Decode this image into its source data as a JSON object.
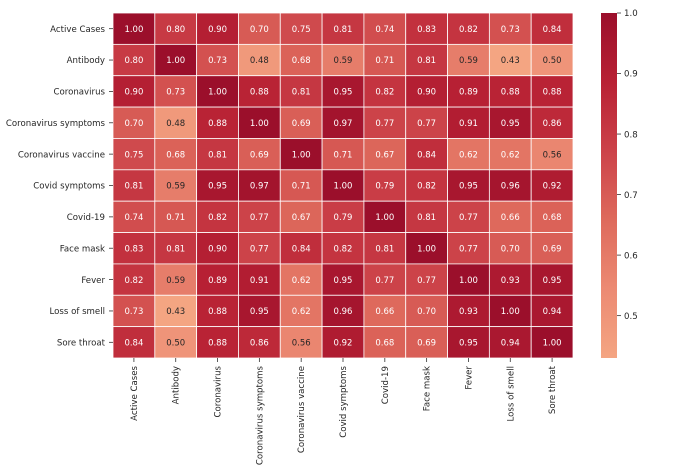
{
  "chart_data": {
    "type": "heatmap",
    "title": "",
    "rows": [
      "Active Cases",
      "Antibody",
      "Coronavirus",
      "Coronavirus symptoms",
      "Coronavirus vaccine",
      "Covid symptoms",
      "Covid-19",
      "Face mask",
      "Fever",
      "Loss of smell",
      "Sore throat"
    ],
    "columns": [
      "Active Cases",
      "Antibody",
      "Coronavirus",
      "Coronavirus symptoms",
      "Coronavirus vaccine",
      "Covid symptoms",
      "Covid-19",
      "Face mask",
      "Fever",
      "Loss of smell",
      "Sore throat"
    ],
    "values": [
      [
        1.0,
        0.8,
        0.9,
        0.7,
        0.75,
        0.81,
        0.74,
        0.83,
        0.82,
        0.73,
        0.84
      ],
      [
        0.8,
        1.0,
        0.73,
        0.48,
        0.68,
        0.59,
        0.71,
        0.81,
        0.59,
        0.43,
        0.5
      ],
      [
        0.9,
        0.73,
        1.0,
        0.88,
        0.81,
        0.95,
        0.82,
        0.9,
        0.89,
        0.88,
        0.88
      ],
      [
        0.7,
        0.48,
        0.88,
        1.0,
        0.69,
        0.97,
        0.77,
        0.77,
        0.91,
        0.95,
        0.86
      ],
      [
        0.75,
        0.68,
        0.81,
        0.69,
        1.0,
        0.71,
        0.67,
        0.84,
        0.62,
        0.62,
        0.56
      ],
      [
        0.81,
        0.59,
        0.95,
        0.97,
        0.71,
        1.0,
        0.79,
        0.82,
        0.95,
        0.96,
        0.92
      ],
      [
        0.74,
        0.71,
        0.82,
        0.77,
        0.67,
        0.79,
        1.0,
        0.81,
        0.77,
        0.66,
        0.68
      ],
      [
        0.83,
        0.81,
        0.9,
        0.77,
        0.84,
        0.82,
        0.81,
        1.0,
        0.77,
        0.7,
        0.69
      ],
      [
        0.82,
        0.59,
        0.89,
        0.91,
        0.62,
        0.95,
        0.77,
        0.77,
        1.0,
        0.93,
        0.95
      ],
      [
        0.73,
        0.43,
        0.88,
        0.95,
        0.62,
        0.96,
        0.66,
        0.7,
        0.93,
        1.0,
        0.94
      ],
      [
        0.84,
        0.5,
        0.88,
        0.86,
        0.56,
        0.92,
        0.68,
        0.69,
        0.95,
        0.94,
        1.0
      ]
    ],
    "value_format": "0.00",
    "vmin": 0.43,
    "vmax": 1.0,
    "colorbar": {
      "ticks": [
        0.5,
        0.6,
        0.7,
        0.8,
        0.9,
        1.0
      ],
      "tick_labels": [
        "0.5",
        "0.6",
        "0.7",
        "0.8",
        "0.9",
        "1.0"
      ]
    },
    "colormap": [
      "#f4a582",
      "#ec8a73",
      "#de6a5c",
      "#cc4249",
      "#b82134",
      "#9b0f2b"
    ],
    "grid_line_color": "#ffffff"
  }
}
